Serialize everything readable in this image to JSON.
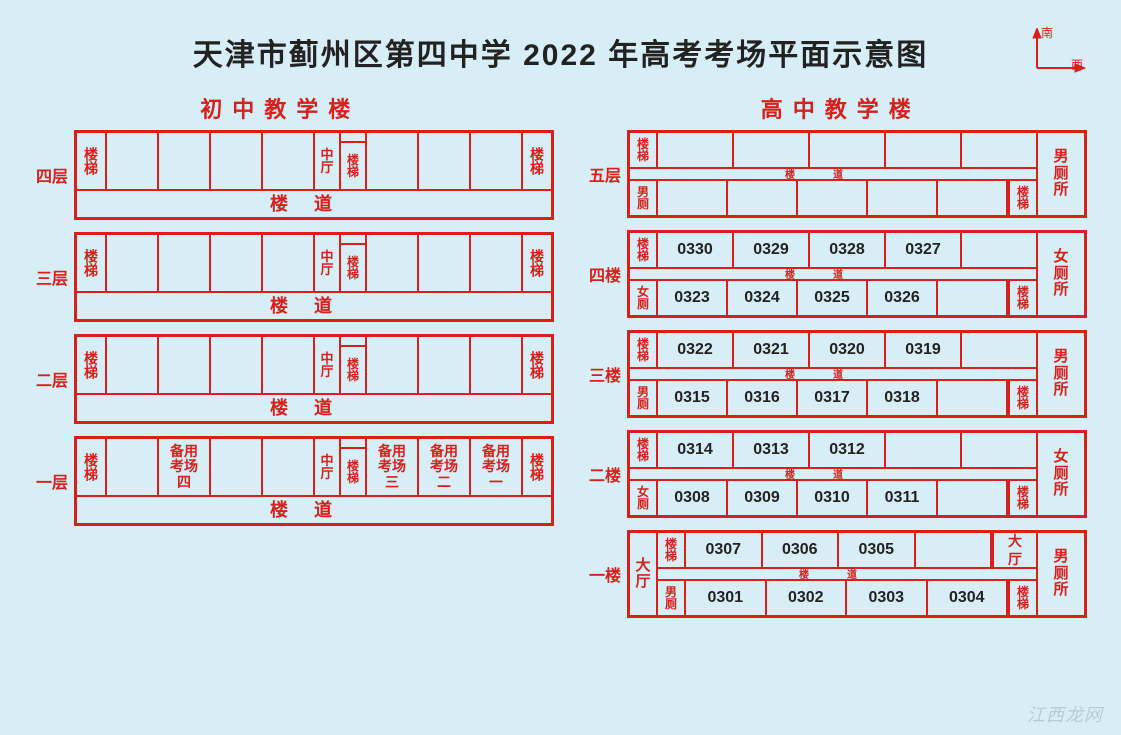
{
  "title": "天津市蓟州区第四中学 2022 年高考考场平面示意图",
  "compass": {
    "up": "南",
    "right": "西"
  },
  "left_building_name": "初中教学楼",
  "right_building_name": "高中教学楼",
  "labels": {
    "stairs": "楼梯",
    "stairs_v1": "楼",
    "stairs_v2": "梯",
    "mid_hall1": "中",
    "mid_hall2": "厅",
    "corridor": "楼道",
    "corridor_l1": "楼",
    "corridor_l2": "道",
    "hall1": "大",
    "hall2": "厅",
    "male_toilet": "男厕所",
    "male_toilet1": "男",
    "male_toilet2": "厕",
    "male_toilet3": "所",
    "female_toilet": "女厕所",
    "female_toilet1": "女",
    "female_toilet2": "厕",
    "female_toilet3": "所",
    "male_small1": "男",
    "male_small2": "厕",
    "female_small1": "女",
    "female_small2": "厕"
  },
  "left_floors": [
    {
      "name": "四层",
      "rooms": [
        "",
        "",
        "",
        "",
        "",
        "",
        ""
      ]
    },
    {
      "name": "三层",
      "rooms": [
        "",
        "",
        "",
        "",
        "",
        "",
        ""
      ]
    },
    {
      "name": "二层",
      "rooms": [
        "",
        "",
        "",
        "",
        "",
        "",
        ""
      ]
    },
    {
      "name": "一层",
      "rooms": [
        "",
        "备用考场四",
        "",
        "",
        "备用考场三",
        "备用考场二",
        "备用考场一"
      ]
    }
  ],
  "right_floors": [
    {
      "name": "五层",
      "hall": false,
      "toilet": "male",
      "top": {
        "left_small": "stairs",
        "rooms": [
          "",
          "",
          "",
          "",
          ""
        ],
        "right_small": null
      },
      "bottom": {
        "left_small": "male",
        "rooms": [
          "",
          "",
          "",
          "",
          ""
        ],
        "right_small": "stairs"
      }
    },
    {
      "name": "四楼",
      "hall": false,
      "toilet": "female",
      "top": {
        "left_small": "stairs",
        "rooms": [
          "0330",
          "0329",
          "0328",
          "0327",
          ""
        ],
        "right_small": null
      },
      "bottom": {
        "left_small": "female",
        "rooms": [
          "0323",
          "0324",
          "0325",
          "0326",
          ""
        ],
        "right_small": "stairs"
      }
    },
    {
      "name": "三楼",
      "hall": false,
      "toilet": "male",
      "top": {
        "left_small": "stairs",
        "rooms": [
          "0322",
          "0321",
          "0320",
          "0319",
          ""
        ],
        "right_small": null
      },
      "bottom": {
        "left_small": "male",
        "rooms": [
          "0315",
          "0316",
          "0317",
          "0318",
          ""
        ],
        "right_small": "stairs"
      }
    },
    {
      "name": "二楼",
      "hall": false,
      "toilet": "female",
      "top": {
        "left_small": "stairs",
        "rooms": [
          "0314",
          "0313",
          "0312",
          "",
          ""
        ],
        "right_small": null
      },
      "bottom": {
        "left_small": "female",
        "rooms": [
          "0308",
          "0309",
          "0310",
          "0311",
          ""
        ],
        "right_small": "stairs"
      }
    },
    {
      "name": "一楼",
      "hall": true,
      "toilet": "male",
      "top": {
        "left_small": "stairs",
        "rooms": [
          "0307",
          "0306",
          "0305",
          ""
        ],
        "right_small": null,
        "right_hall": true
      },
      "bottom": {
        "left_small": "male",
        "rooms": [
          "0301",
          "0302",
          "0303",
          "0304"
        ],
        "right_small": "stairs"
      }
    }
  ],
  "styling": {
    "bg_color": "#d8eef7",
    "line_color": "#d8201a",
    "title_color": "#222222",
    "room_number_color": "#222222",
    "line_width_outer": 3,
    "line_width_inner": 2,
    "title_fontsize": 30,
    "subtitle_fontsize": 22
  },
  "watermark": "江西龙网"
}
